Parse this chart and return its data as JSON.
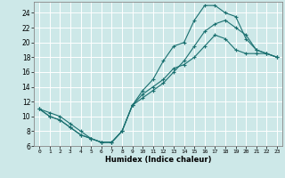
{
  "xlabel": "Humidex (Indice chaleur)",
  "bg_color": "#cde8e8",
  "line_color": "#1a7070",
  "grid_color": "#ffffff",
  "xlim": [
    -0.5,
    23.5
  ],
  "ylim": [
    6,
    25.5
  ],
  "xticks": [
    0,
    1,
    2,
    3,
    4,
    5,
    6,
    7,
    8,
    9,
    10,
    11,
    12,
    13,
    14,
    15,
    16,
    17,
    18,
    19,
    20,
    21,
    22,
    23
  ],
  "yticks": [
    6,
    8,
    10,
    12,
    14,
    16,
    18,
    20,
    22,
    24
  ],
  "line1_x": [
    0,
    1,
    2,
    3,
    4,
    5,
    6,
    7,
    8,
    9,
    10,
    11,
    12,
    13,
    14,
    15,
    16,
    17,
    18,
    19,
    20,
    21,
    22,
    23
  ],
  "line1_y": [
    11,
    10,
    9.5,
    8.5,
    7.5,
    7,
    6.5,
    6.5,
    8,
    11.5,
    13,
    14,
    15,
    16.5,
    17,
    18,
    19.5,
    21,
    20.5,
    19,
    18.5,
    18.5,
    18.5,
    18
  ],
  "line2_x": [
    0,
    1,
    2,
    3,
    4,
    5,
    6,
    7,
    8,
    9,
    10,
    11,
    12,
    13,
    14,
    15,
    16,
    17,
    18,
    19,
    20,
    21,
    22,
    23
  ],
  "line2_y": [
    11,
    10,
    9.5,
    8.5,
    7.5,
    7,
    6.5,
    6.5,
    8,
    11.5,
    12.5,
    13.5,
    14.5,
    16,
    17.5,
    19.5,
    21.5,
    22.5,
    23,
    22,
    21,
    19,
    18.5,
    18
  ],
  "line3_x": [
    0,
    1,
    2,
    3,
    4,
    5,
    6,
    7,
    8,
    9,
    10,
    11,
    12,
    13,
    14,
    15,
    16,
    17,
    18,
    19,
    20,
    21,
    22,
    23
  ],
  "line3_y": [
    11,
    10.5,
    10,
    9,
    8,
    7,
    6.5,
    6.5,
    8,
    11.5,
    13.5,
    15,
    17.5,
    19.5,
    20,
    23,
    25,
    25,
    24,
    23.5,
    20.5,
    19,
    18.5,
    18
  ]
}
